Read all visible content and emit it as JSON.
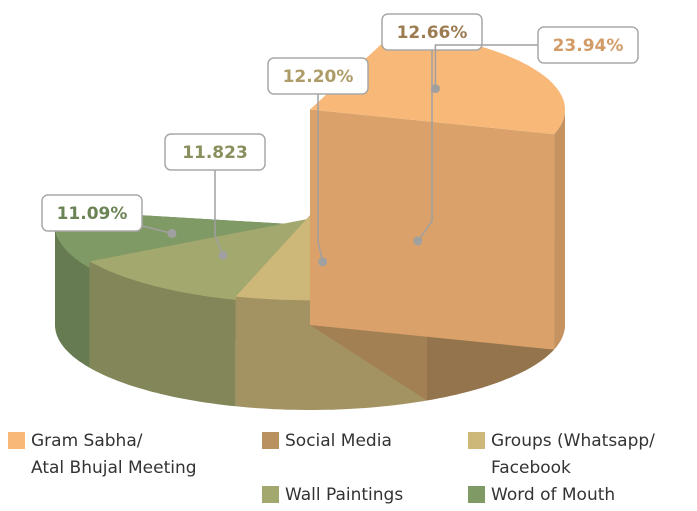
{
  "chart_data": {
    "type": "pie3d",
    "categories": [
      "Gram Sabha/\nAtal Bhujal Meeting",
      "Social Media",
      "Groups (Whatsapp/\nFacebook",
      "Wall Paintings",
      "Word of Mouth"
    ],
    "values": [
      23.94,
      12.66,
      12.2,
      11.823,
      11.09
    ],
    "value_labels": [
      "23.94%",
      "12.66%",
      "12.20%",
      "11.823",
      "11.09%"
    ],
    "colors": [
      "#f8b878",
      "#b8915f",
      "#cdb87a",
      "#a3a86e",
      "#7f9a65"
    ],
    "legend": "bottom"
  }
}
